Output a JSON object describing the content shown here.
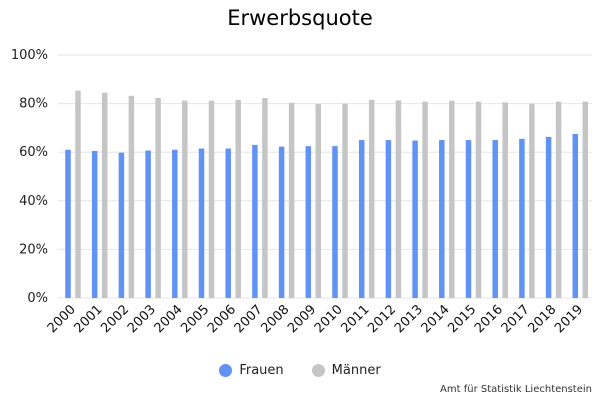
{
  "colors": {
    "frauen": "#6193F4",
    "maenner": "#C5C5C5",
    "grid": "#E6E6E6"
  },
  "chart_data": {
    "type": "bar",
    "title": "Erwerbsquote",
    "categories": [
      "2000",
      "2001",
      "2002",
      "2003",
      "2004",
      "2005",
      "2006",
      "2007",
      "2008",
      "2009",
      "2010",
      "2011",
      "2012",
      "2013",
      "2014",
      "2015",
      "2016",
      "2017",
      "2018",
      "2019"
    ],
    "series": [
      {
        "name": "Frauen",
        "values": [
          61,
          60.5,
          59.8,
          60.7,
          61,
          61.5,
          61.5,
          63,
          62.3,
          62.5,
          62.5,
          65,
          65,
          64.8,
          65,
          65,
          65,
          65.5,
          66.3,
          67.5
        ]
      },
      {
        "name": "Männer",
        "values": [
          85.3,
          84.5,
          83.2,
          82.3,
          81.2,
          81.2,
          81.5,
          82.3,
          80.3,
          79.8,
          80,
          81.5,
          81.3,
          80.8,
          81.2,
          80.8,
          80.5,
          80,
          80.8,
          80.8
        ]
      }
    ],
    "yticks": [
      "0%",
      "20%",
      "40%",
      "60%",
      "80%",
      "100%"
    ],
    "ylim": [
      0,
      100
    ],
    "grid": true,
    "legend": "bottom-center",
    "source": "Amt für Statistik Liechtenstein"
  }
}
